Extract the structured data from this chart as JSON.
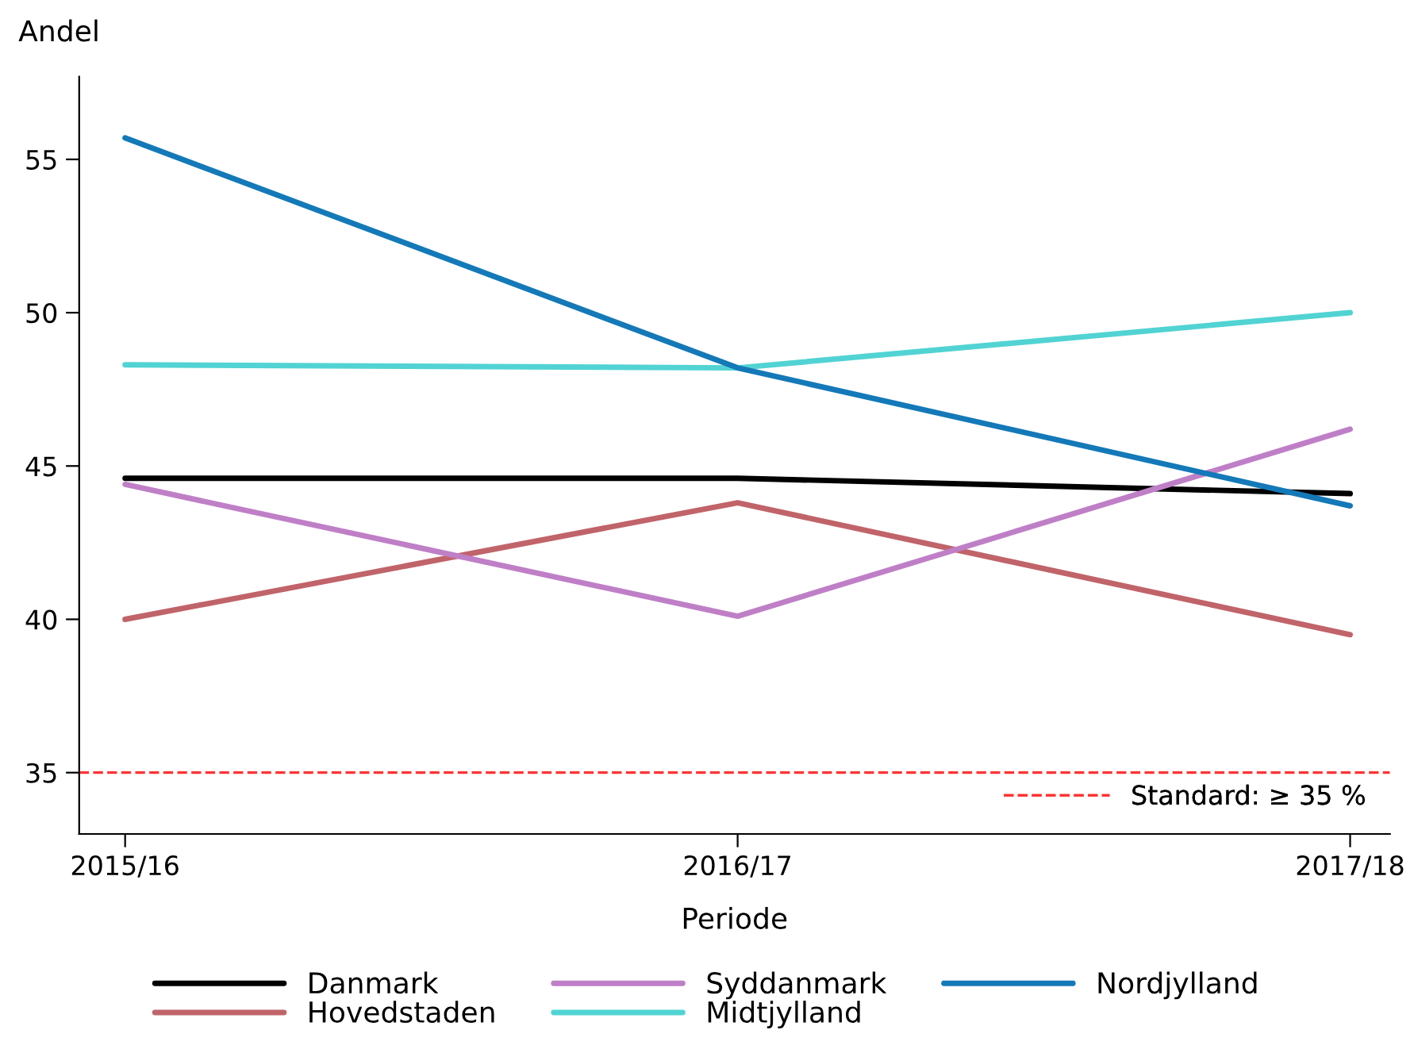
{
  "chart_data": {
    "type": "line",
    "xlabel": "Periode",
    "ylabel": "Andel",
    "categories": [
      "2015/16",
      "2016/17",
      "2017/18"
    ],
    "series": [
      {
        "name": "Danmark",
        "color": "#000000",
        "values": [
          44.6,
          44.6,
          44.1
        ]
      },
      {
        "name": "Hovedstaden",
        "color": "#c0646a",
        "values": [
          40.0,
          43.8,
          39.5
        ]
      },
      {
        "name": "Syddanmark",
        "color": "#bf7fc7",
        "values": [
          44.4,
          40.1,
          46.2
        ]
      },
      {
        "name": "Midtjylland",
        "color": "#52d3d3",
        "values": [
          48.3,
          48.2,
          50.0
        ]
      },
      {
        "name": "Nordjylland",
        "color": "#1479b8",
        "values": [
          55.7,
          48.2,
          43.7
        ]
      }
    ],
    "ylim": [
      33,
      57.7
    ],
    "yticks": [
      35,
      40,
      45,
      50,
      55
    ],
    "ref_lines": [
      {
        "axis": "y",
        "value": 35,
        "label": "Standard: ≥ 35 %",
        "color": "#ff3333",
        "line_style": "dashed"
      }
    ],
    "grid": false,
    "legend": "bottom",
    "marker": "none",
    "line_style": "solid"
  }
}
